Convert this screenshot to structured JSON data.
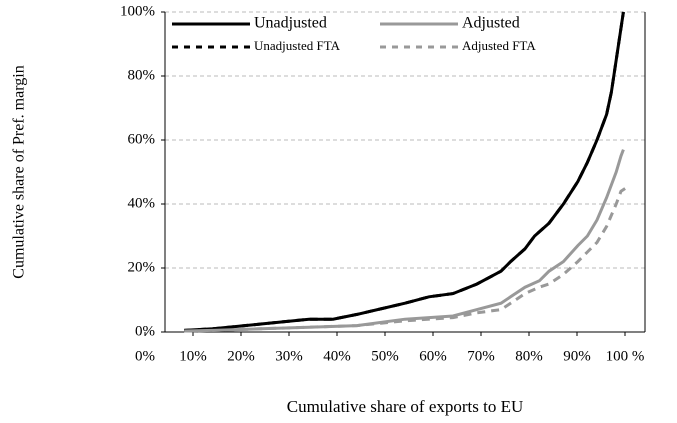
{
  "chart_data": {
    "type": "line",
    "x_label": "Cumulative share of exports to EU",
    "y_label": "Cumulative share of Pref. margin",
    "xlim": [
      0,
      100
    ],
    "ylim": [
      0,
      100
    ],
    "xticks": [
      {
        "value": 0,
        "label": "0%"
      },
      {
        "value": 10,
        "label": "10%"
      },
      {
        "value": 20,
        "label": "20%"
      },
      {
        "value": 30,
        "label": "30%"
      },
      {
        "value": 40,
        "label": "40%"
      },
      {
        "value": 50,
        "label": "50%"
      },
      {
        "value": 60,
        "label": "60%"
      },
      {
        "value": 70,
        "label": "70%"
      },
      {
        "value": 80,
        "label": "80%"
      },
      {
        "value": 90,
        "label": "90%"
      },
      {
        "value": 100,
        "label": "100 %"
      }
    ],
    "yticks": [
      {
        "value": 0,
        "label": "0%"
      },
      {
        "value": 20,
        "label": "20%"
      },
      {
        "value": 40,
        "label": "40%"
      },
      {
        "value": 60,
        "label": "60%"
      },
      {
        "value": 80,
        "label": "80%"
      },
      {
        "value": 100,
        "label": "100%"
      }
    ],
    "grid": true,
    "series": [
      {
        "name": "Unadjusted",
        "color": "#000000",
        "dash": "solid",
        "x": [
          4,
          10,
          20,
          30,
          35,
          40,
          50,
          55,
          60,
          65,
          70,
          72,
          75,
          77,
          80,
          83,
          86,
          88,
          90,
          92,
          93,
          94,
          95,
          95.5
        ],
        "values": [
          0.5,
          1,
          2.5,
          4,
          4,
          5.5,
          9,
          11,
          12,
          15,
          19,
          22,
          26,
          30,
          34,
          40,
          47,
          53,
          60,
          68,
          75,
          85,
          95,
          100
        ]
      },
      {
        "name": "Adjusted",
        "color": "#999999",
        "dash": "solid",
        "x": [
          4,
          10,
          20,
          30,
          40,
          50,
          60,
          65,
          70,
          72,
          75,
          78,
          80,
          83,
          86,
          88,
          90,
          92,
          94,
          95,
          95.5
        ],
        "values": [
          0.3,
          0.5,
          1,
          1.5,
          2,
          4,
          5,
          7,
          9,
          11,
          14,
          16,
          19,
          22,
          27,
          30,
          35,
          42,
          50,
          55,
          57
        ]
      },
      {
        "name": "Unadjusted FTA",
        "color": "#000000",
        "dash": "dash",
        "x": [
          4,
          10,
          20,
          30,
          35,
          40,
          50,
          55,
          60,
          65,
          70,
          72,
          75,
          77,
          80,
          83,
          86,
          88,
          90,
          92,
          93,
          94,
          95,
          95.5
        ],
        "values": [
          0.5,
          1,
          2.5,
          4,
          4,
          5.5,
          9,
          11,
          12,
          15,
          19,
          22,
          26,
          30,
          34,
          40,
          47,
          53,
          60,
          68,
          75,
          85,
          95,
          100
        ]
      },
      {
        "name": "Adjusted FTA",
        "color": "#999999",
        "dash": "dash",
        "x": [
          4,
          10,
          20,
          30,
          40,
          50,
          60,
          65,
          70,
          72,
          75,
          78,
          80,
          83,
          86,
          88,
          90,
          92,
          94,
          95,
          96
        ],
        "values": [
          0.3,
          0.5,
          1,
          1.5,
          2,
          3.5,
          4.5,
          6,
          7,
          9,
          12,
          14,
          15,
          18,
          22,
          25,
          28,
          33,
          40,
          44,
          45
        ]
      }
    ]
  }
}
